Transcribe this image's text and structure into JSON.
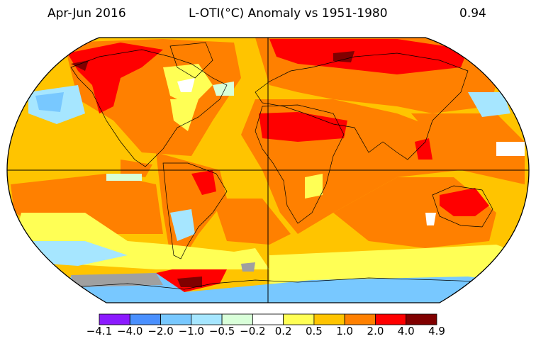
{
  "header": {
    "period": "Apr-Jun 2016",
    "title": "L-OTI(°C) Anomaly vs 1951-1980",
    "global_mean": "0.94"
  },
  "legend": {
    "ticks": [
      "−4.1",
      "−4.0",
      "−2.0",
      "−1.0",
      "−0.5",
      "−0.2",
      "0.2",
      "0.5",
      "1.0",
      "2.0",
      "4.0",
      "4.9"
    ],
    "colors": [
      "#8b1aff",
      "#4a90ff",
      "#78c8ff",
      "#a6e6ff",
      "#d9ffd9",
      "#ffffff",
      "#ffff55",
      "#ffc400",
      "#ff8000",
      "#ff0000",
      "#800000"
    ]
  },
  "palette": {
    "ocean_base": "#ffc400",
    "land_warm": "#ff8000",
    "hot": "#ff0000",
    "very_hot": "#800000",
    "mild": "#ffff55",
    "cool": "#a6e6ff",
    "cold": "#78c8ff",
    "near_zero": "#ffffff",
    "slight_cool": "#d9ffd9",
    "missing": "#a0a0a0"
  }
}
